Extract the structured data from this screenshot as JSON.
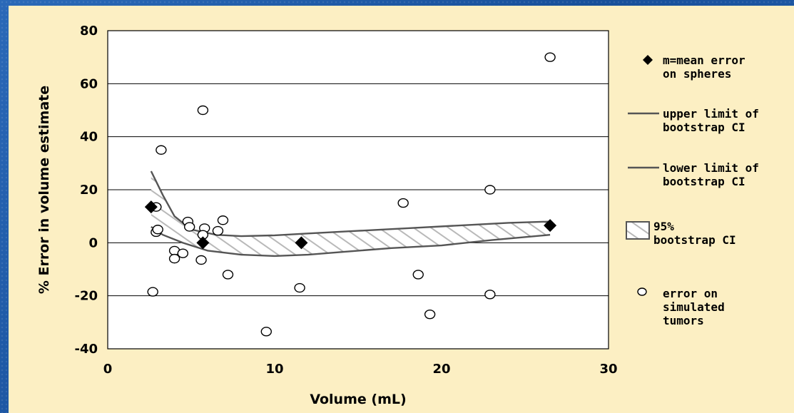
{
  "chart_data": {
    "type": "scatter",
    "xlabel": "Volume (mL)",
    "ylabel": "% Error in volume estimate",
    "xlim": [
      0,
      30
    ],
    "ylim": [
      -40,
      80
    ],
    "x_ticks": [
      "0",
      "10",
      "20",
      "30"
    ],
    "y_ticks": [
      "-40",
      "-20",
      "0",
      "20",
      "40",
      "60",
      "80"
    ],
    "grid": "horizontal",
    "legend_position": "right",
    "series": [
      {
        "name": "m=mean error on spheres",
        "marker": "diamond",
        "color": "#000000",
        "points": [
          [
            2.6,
            13.5
          ],
          [
            5.7,
            0
          ],
          [
            11.6,
            0
          ],
          [
            26.5,
            6.5
          ]
        ]
      },
      {
        "name": "upper limit of bootstrap CI",
        "style": "line",
        "color": "#555555",
        "points": [
          [
            2.6,
            27
          ],
          [
            3.3,
            18
          ],
          [
            4.0,
            10
          ],
          [
            5.0,
            5
          ],
          [
            6.5,
            3
          ],
          [
            8.0,
            2.5
          ],
          [
            10,
            2.8
          ],
          [
            12,
            3.5
          ],
          [
            15,
            4.5
          ],
          [
            18,
            5.5
          ],
          [
            21,
            6.5
          ],
          [
            24,
            7.5
          ],
          [
            26.5,
            8
          ]
        ]
      },
      {
        "name": "lower limit of bootstrap CI",
        "style": "line",
        "color": "#555555",
        "points": [
          [
            2.6,
            6
          ],
          [
            3.3,
            3
          ],
          [
            4.5,
            0
          ],
          [
            6.0,
            -3
          ],
          [
            8.0,
            -4.5
          ],
          [
            10,
            -5
          ],
          [
            12,
            -4.5
          ],
          [
            14,
            -3.5
          ],
          [
            17,
            -2
          ],
          [
            20,
            -1
          ],
          [
            23,
            1
          ],
          [
            26.5,
            3
          ]
        ]
      },
      {
        "name": "95% bootstrap CI",
        "style": "band"
      },
      {
        "name": "error on simulated tumors",
        "marker": "open-circle",
        "color": "#000000",
        "points": [
          [
            26.5,
            70
          ],
          [
            5.7,
            50
          ],
          [
            3.2,
            35
          ],
          [
            22.9,
            20
          ],
          [
            17.7,
            15
          ],
          [
            2.9,
            13.5
          ],
          [
            4.8,
            8
          ],
          [
            6.9,
            8.5
          ],
          [
            4.9,
            6
          ],
          [
            5.8,
            5.5
          ],
          [
            6.6,
            4.5
          ],
          [
            2.9,
            4
          ],
          [
            3.0,
            5
          ],
          [
            5.7,
            3
          ],
          [
            4.0,
            -3
          ],
          [
            4.5,
            -4
          ],
          [
            4.0,
            -6
          ],
          [
            5.6,
            -6.5
          ],
          [
            7.2,
            -12
          ],
          [
            18.6,
            -12
          ],
          [
            11.5,
            -17
          ],
          [
            2.7,
            -18.5
          ],
          [
            22.9,
            -19.5
          ],
          [
            19.3,
            -27
          ],
          [
            9.5,
            -33.5
          ]
        ]
      }
    ],
    "legend": [
      {
        "label_lines": [
          "m=mean error",
          "on spheres"
        ]
      },
      {
        "label_lines": [
          "upper limit of",
          "bootstrap CI"
        ]
      },
      {
        "label_lines": [
          "lower limit of",
          "bootstrap CI"
        ]
      },
      {
        "label_lines": [
          "95%",
          "bootstrap CI"
        ]
      },
      {
        "label_lines": [
          "error on",
          "simulated",
          "tumors"
        ]
      }
    ]
  }
}
